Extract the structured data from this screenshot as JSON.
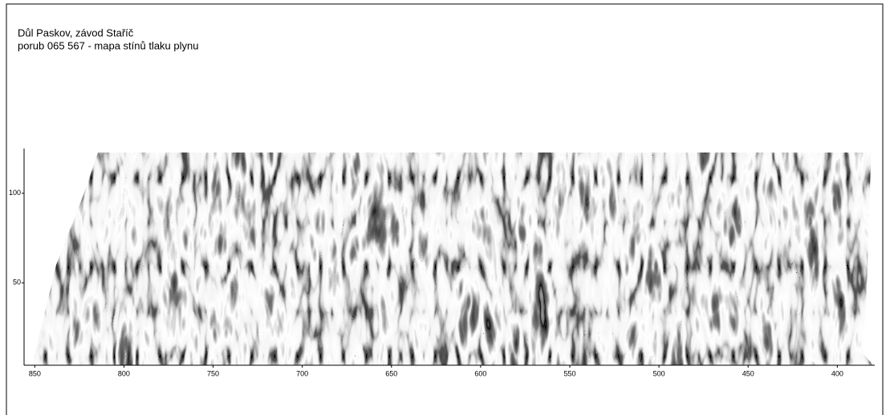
{
  "chart_data": {
    "type": "image",
    "title": "Důl Paskov, závod Staříč",
    "subtitle": "porub 065 567 - mapa stínů tlaku plynu",
    "xlim": [
      856,
      379
    ],
    "xticks": [
      850,
      800,
      750,
      700,
      650,
      600,
      550,
      500,
      450,
      400
    ],
    "ylim": [
      4,
      125
    ],
    "yticks": [
      50,
      100
    ],
    "grid": false
  }
}
